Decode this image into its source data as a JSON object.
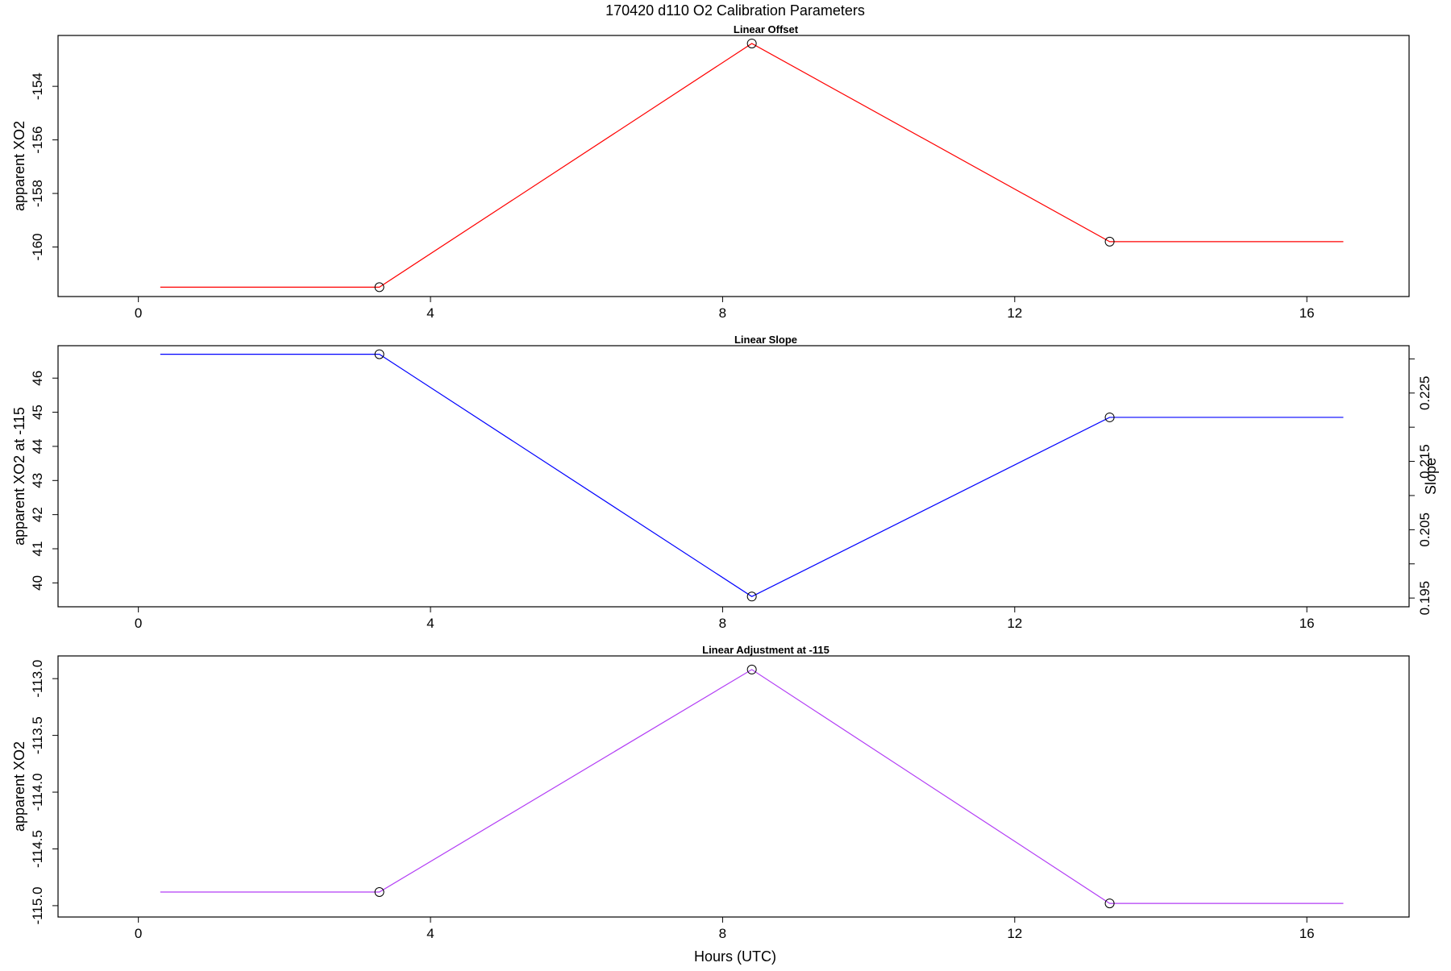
{
  "title": "170420   d110   O2 Calibration Parameters",
  "xlabel": "Hours (UTC)",
  "chart_data": [
    {
      "type": "line",
      "title": "Linear Offset",
      "xlabel": "",
      "ylabel": "apparent XO2",
      "xlim": [
        -1.1,
        17.4
      ],
      "ylim": [
        -161.85,
        -152.1
      ],
      "x_ticks": [
        0,
        4,
        8,
        12,
        16
      ],
      "y_ticks": [
        -160,
        -158,
        -156,
        -154
      ],
      "line_x": [
        0.3,
        3.3,
        8.4,
        13.3,
        16.5
      ],
      "line_y": [
        -161.5,
        -161.5,
        -152.4,
        -159.8,
        -159.8
      ],
      "points": {
        "x": [
          3.3,
          8.4,
          13.3
        ],
        "y": [
          -161.5,
          -152.4,
          -159.8
        ]
      },
      "color": "#ff0000",
      "grid": false,
      "legend": "none"
    },
    {
      "type": "line",
      "title": "Linear Slope",
      "xlabel": "",
      "ylabel": "apparent XO2 at -115",
      "ylabel_right": "Slope",
      "xlim": [
        -1.1,
        17.4
      ],
      "ylim": [
        39.3,
        46.95
      ],
      "x_ticks": [
        0,
        4,
        8,
        12,
        16
      ],
      "y_ticks": [
        40,
        41,
        42,
        43,
        44,
        45,
        46
      ],
      "y2_ticks": [
        0.195,
        0.2,
        0.205,
        0.21,
        0.215,
        0.22,
        0.225,
        0.23
      ],
      "y2_tick_labels": [
        "0.195",
        "",
        "0.205",
        "",
        "0.215",
        "",
        "0.225",
        ""
      ],
      "y2lim": [
        0.19372,
        0.23193
      ],
      "line_x": [
        0.3,
        3.3,
        8.4,
        13.3,
        16.5
      ],
      "line_y": [
        46.7,
        46.7,
        39.6,
        44.85,
        44.85
      ],
      "points": {
        "x": [
          3.3,
          8.4,
          13.3
        ],
        "y": [
          46.7,
          39.6,
          44.85
        ]
      },
      "color": "#0000ff",
      "grid": false,
      "legend": "none"
    },
    {
      "type": "line",
      "title": "Linear Adjustment at -115",
      "xlabel": "Hours (UTC)",
      "ylabel": "apparent XO2",
      "xlim": [
        -1.1,
        17.4
      ],
      "ylim": [
        -115.1,
        -112.8
      ],
      "x_ticks": [
        0,
        4,
        8,
        12,
        16
      ],
      "y_ticks": [
        -115.0,
        -114.5,
        -114.0,
        -113.5,
        -113.0
      ],
      "y_tick_labels": [
        "-115.0",
        "-114.5",
        "-114.0",
        "-113.5",
        "-113.0"
      ],
      "line_x": [
        0.3,
        3.3,
        8.4,
        13.3,
        16.5
      ],
      "line_y": [
        -114.88,
        -114.88,
        -112.92,
        -114.98,
        -114.98
      ],
      "points": {
        "x": [
          3.3,
          8.4,
          13.3
        ],
        "y": [
          -114.88,
          -112.92,
          -114.98
        ]
      },
      "color": "#b23cf5",
      "grid": false,
      "legend": "none"
    }
  ]
}
